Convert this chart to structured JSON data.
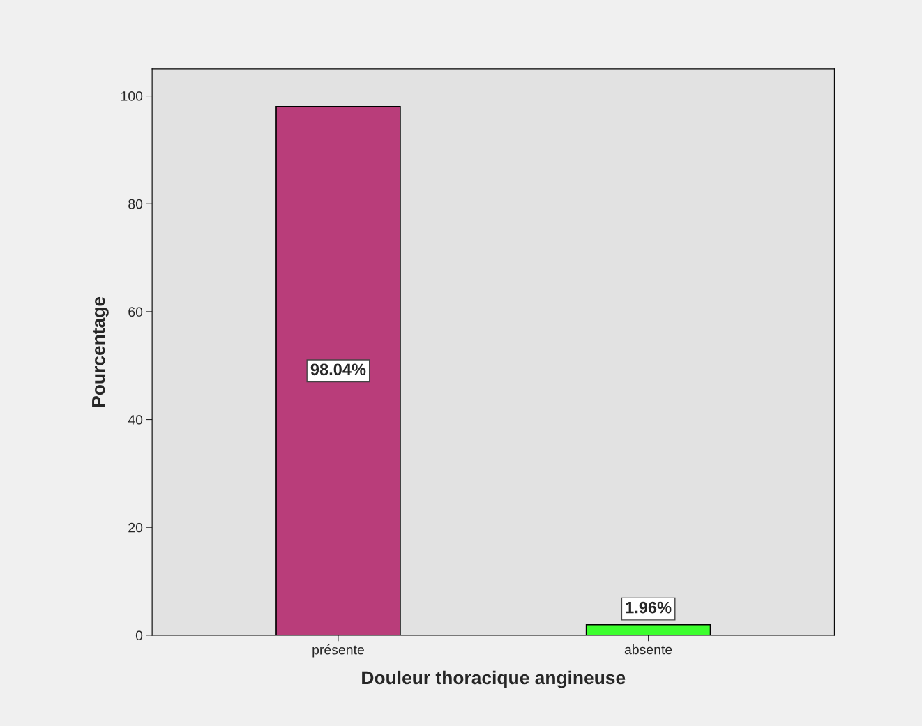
{
  "chart_data": {
    "type": "bar",
    "xlabel": "Douleur thoracique angineuse",
    "ylabel": "Pourcentage",
    "categories": [
      "présente",
      "absente"
    ],
    "values": [
      98.04,
      1.96
    ],
    "colors": [
      "#b93d7a",
      "#3cfe2e"
    ],
    "value_labels": [
      "98.04%",
      "1.96%"
    ],
    "ylim": [
      0,
      105
    ],
    "yticks": [
      0,
      20,
      40,
      60,
      80,
      100
    ],
    "grid": false
  }
}
